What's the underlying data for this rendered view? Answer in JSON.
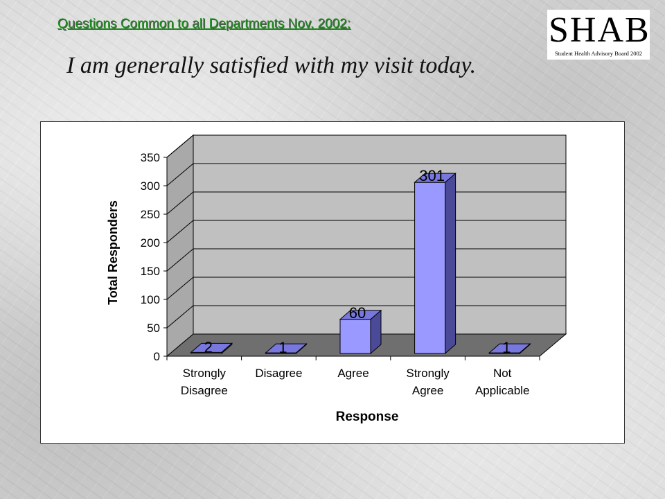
{
  "header": {
    "link_text": "Questions Common to all Departments Nov. 2002:",
    "title": "I am generally satisfied with my visit today."
  },
  "logo": {
    "main": "SHAB",
    "sub": "Student Health Advisory Board 2002"
  },
  "chart_data": {
    "type": "bar",
    "categories": [
      [
        "Strongly",
        "Disagree"
      ],
      [
        "Disagree"
      ],
      [
        "Agree"
      ],
      [
        "Strongly",
        "Agree"
      ],
      [
        "Not",
        "Applicable"
      ]
    ],
    "values": [
      2,
      1,
      60,
      301,
      1
    ],
    "data_labels": [
      "2",
      "1",
      "60",
      "301",
      "1"
    ],
    "xlabel": "Response",
    "ylabel": "Total Responders",
    "ylim": [
      0,
      350
    ],
    "yticks": [
      0,
      50,
      100,
      150,
      200,
      250,
      300,
      350
    ],
    "grid": true,
    "style": "3d",
    "colors": {
      "bar_front": "#9999ff",
      "bar_top": "#7777dd",
      "bar_side": "#4a4a99",
      "back_wall": "#c0c0c0",
      "side_wall": "#a9a9a9",
      "floor": "#6f6f6f"
    }
  }
}
